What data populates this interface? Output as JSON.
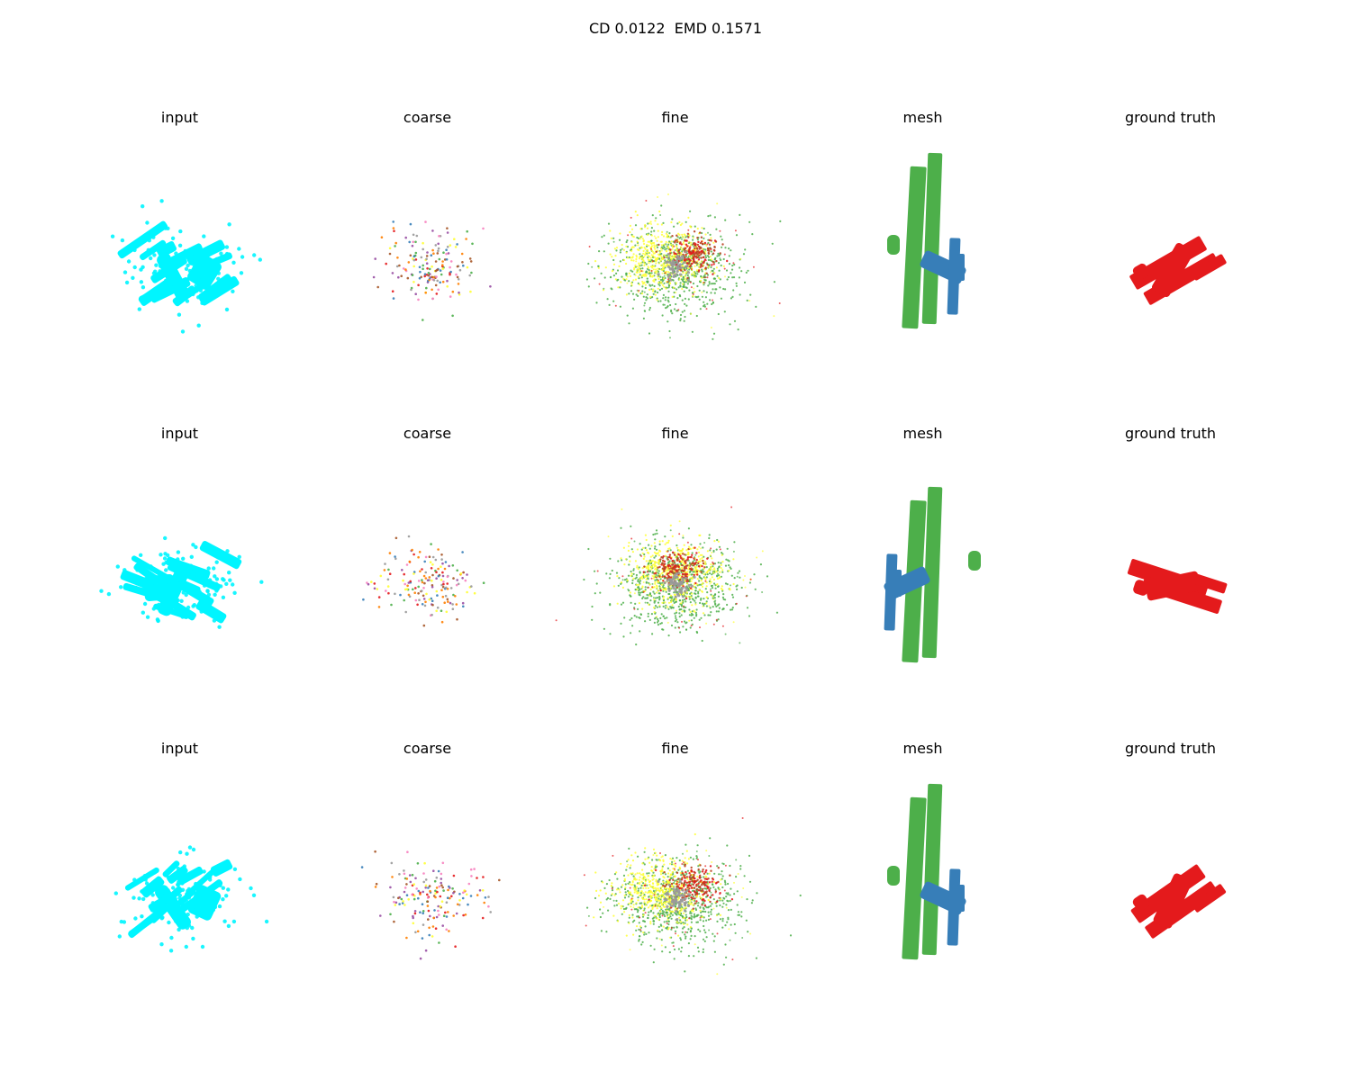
{
  "figure": {
    "title": "CD 0.0122  EMD 0.1571"
  },
  "colors": {
    "input": "#00f5ff",
    "mesh_wing": "#4daf4a",
    "mesh_tail": "#377eb8",
    "ground_truth": "#e41a1c",
    "fine_palette": [
      "#ffff33",
      "#4daf4a",
      "#b8431f",
      "#e41a1c",
      "#999999"
    ],
    "coarse_palette": [
      "#e41a1c",
      "#377eb8",
      "#4daf4a",
      "#984ea3",
      "#ff7f00",
      "#ffff33",
      "#a65628",
      "#f781bf",
      "#999999"
    ]
  },
  "rows": [
    {
      "panels": [
        {
          "key": "input",
          "title": "input"
        },
        {
          "key": "coarse",
          "title": "coarse"
        },
        {
          "key": "fine",
          "title": "fine"
        },
        {
          "key": "mesh",
          "title": "mesh"
        },
        {
          "key": "ground_truth",
          "title": "ground truth"
        }
      ]
    },
    {
      "panels": [
        {
          "key": "input",
          "title": "input"
        },
        {
          "key": "coarse",
          "title": "coarse"
        },
        {
          "key": "fine",
          "title": "fine"
        },
        {
          "key": "mesh",
          "title": "mesh"
        },
        {
          "key": "ground_truth",
          "title": "ground truth"
        }
      ]
    },
    {
      "panels": [
        {
          "key": "input",
          "title": "input"
        },
        {
          "key": "coarse",
          "title": "coarse"
        },
        {
          "key": "fine",
          "title": "fine"
        },
        {
          "key": "mesh",
          "title": "mesh"
        },
        {
          "key": "ground_truth",
          "title": "ground truth"
        }
      ]
    }
  ]
}
